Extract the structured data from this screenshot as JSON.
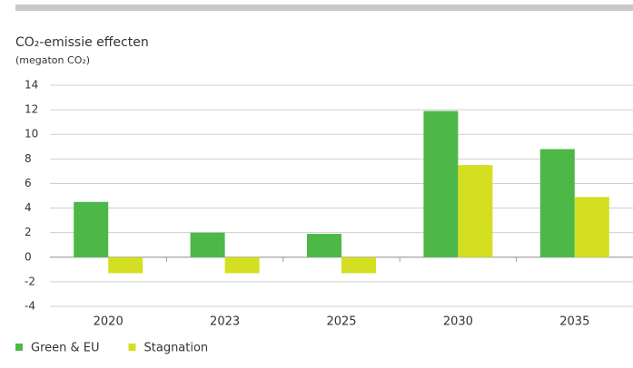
{
  "chart_data": {
    "type": "bar",
    "title": "CO₂-emissie effecten",
    "subtitle": "(megaton CO₂)",
    "categories": [
      "2020",
      "2023",
      "2025",
      "2030",
      "2035"
    ],
    "series": [
      {
        "name": "Green & EU",
        "color": "#4db848",
        "values": [
          4.5,
          2.0,
          1.9,
          11.9,
          8.8
        ]
      },
      {
        "name": "Stagnation",
        "color": "#d4df22",
        "values": [
          -1.3,
          -1.3,
          -1.3,
          7.5,
          4.9
        ]
      }
    ],
    "ylim": [
      -4,
      14
    ],
    "yticks": [
      -4,
      -2,
      0,
      2,
      4,
      6,
      8,
      10,
      12,
      14
    ],
    "grid": true,
    "legend": "bottom"
  }
}
